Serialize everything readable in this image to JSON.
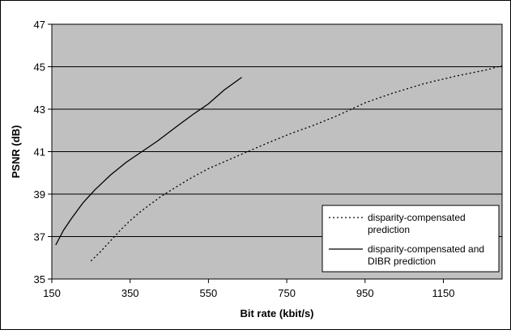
{
  "chart_data": {
    "type": "line",
    "title": "",
    "xlabel": "Bit rate (kbit/s)",
    "ylabel": "PSNR (dB)",
    "xlim": [
      150,
      1300
    ],
    "ylim": [
      35,
      47
    ],
    "x_ticks": [
      150,
      350,
      550,
      750,
      950,
      1150
    ],
    "y_ticks": [
      35,
      37,
      39,
      41,
      43,
      45,
      47
    ],
    "grid": "horizontal",
    "plot_background": "#c0c0c0",
    "legend_placement": "bottom-right",
    "series": [
      {
        "name": "disparity-compensated prediction",
        "style": "dotted",
        "color": "#000000",
        "x": [
          250,
          275,
          300,
          325,
          350,
          375,
          400,
          430,
          460,
          500,
          550,
          600,
          650,
          700,
          760,
          820,
          880,
          950,
          1020,
          1100,
          1180,
          1260,
          1300
        ],
        "y": [
          35.85,
          36.3,
          36.8,
          37.3,
          37.75,
          38.15,
          38.5,
          38.9,
          39.25,
          39.7,
          40.2,
          40.6,
          41.0,
          41.4,
          41.85,
          42.25,
          42.7,
          43.3,
          43.75,
          44.2,
          44.55,
          44.85,
          45.05
        ]
      },
      {
        "name": "disparity-compensated and DIBR prediction",
        "style": "solid",
        "color": "#000000",
        "x": [
          160,
          180,
          200,
          230,
          260,
          300,
          340,
          380,
          420,
          470,
          510,
          550,
          590,
          635
        ],
        "y": [
          36.6,
          37.3,
          37.85,
          38.6,
          39.2,
          39.9,
          40.5,
          41.0,
          41.5,
          42.2,
          42.75,
          43.25,
          43.9,
          44.5
        ]
      }
    ]
  }
}
